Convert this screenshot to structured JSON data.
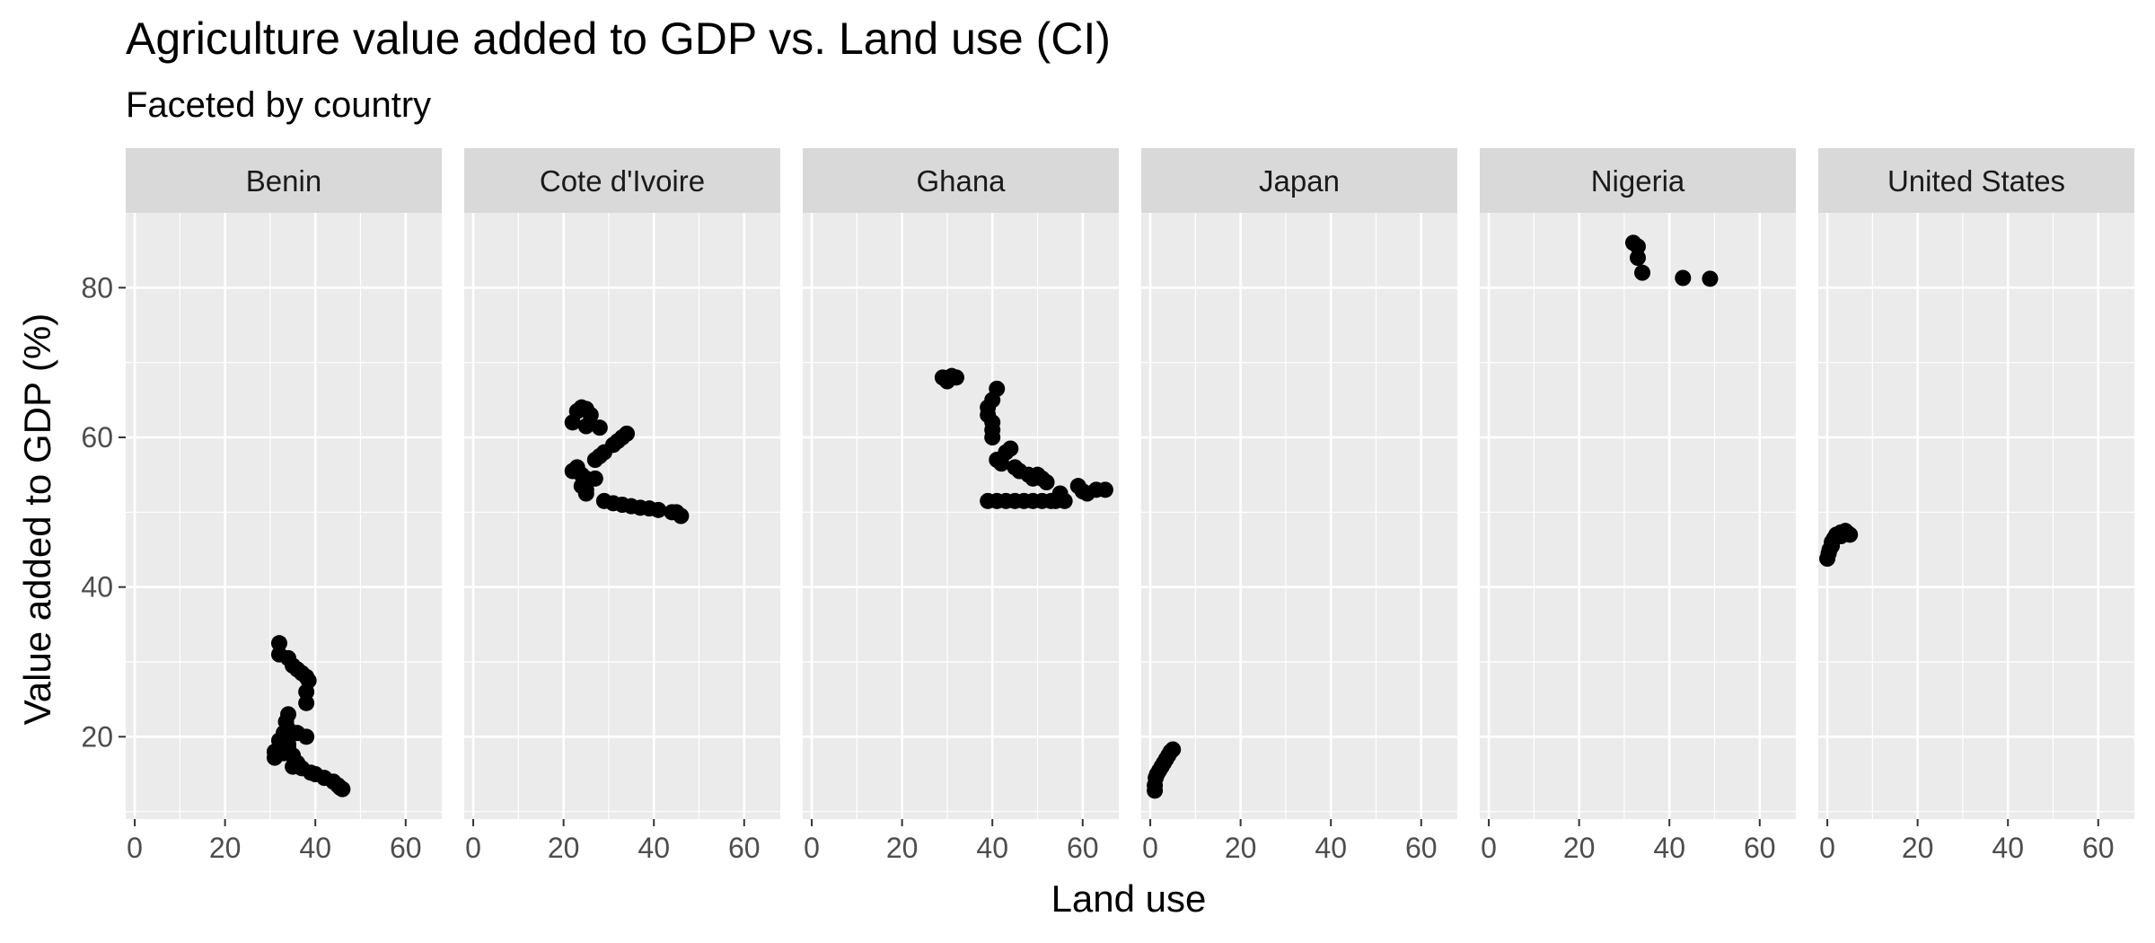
{
  "chart_data": {
    "type": "scatter",
    "title": "Agriculture value added to GDP vs. Land use (CI)",
    "subtitle": "Faceted by country",
    "xlabel": "Land use",
    "ylabel": "Value added to GDP (%)",
    "xlim": [
      -2,
      68
    ],
    "ylim": [
      9,
      90
    ],
    "x_ticks": [
      0,
      20,
      40,
      60
    ],
    "y_ticks": [
      20,
      40,
      60,
      80
    ],
    "grid": true,
    "point_color": "#000000",
    "panel_background": "#ebebeb",
    "strip_background": "#d9d9d9",
    "facets": [
      {
        "label": "Benin",
        "points": [
          [
            32,
            32.5
          ],
          [
            32,
            31
          ],
          [
            34,
            30.5
          ],
          [
            35,
            29.5
          ],
          [
            36,
            29
          ],
          [
            37,
            28.5
          ],
          [
            38,
            28
          ],
          [
            38.5,
            27.5
          ],
          [
            38,
            26
          ],
          [
            38,
            24.5
          ],
          [
            34,
            23
          ],
          [
            33.5,
            22
          ],
          [
            34,
            21
          ],
          [
            33,
            20.5
          ],
          [
            33,
            19.5
          ],
          [
            34,
            19
          ],
          [
            32,
            19.5
          ],
          [
            31,
            18
          ],
          [
            31,
            17.2
          ],
          [
            33,
            17.8
          ],
          [
            34,
            18.5
          ],
          [
            35,
            17.5
          ],
          [
            36,
            16.5
          ],
          [
            35,
            16
          ],
          [
            37,
            15.8
          ],
          [
            39,
            15.2
          ],
          [
            40,
            15
          ],
          [
            42,
            14.5
          ],
          [
            44,
            14
          ],
          [
            45,
            13.5
          ],
          [
            45.5,
            13.2
          ],
          [
            46,
            13
          ],
          [
            36,
            20.5
          ],
          [
            38,
            20
          ]
        ]
      },
      {
        "label": "Cote d'Ivoire",
        "points": [
          [
            22,
            62
          ],
          [
            23,
            63.5
          ],
          [
            24,
            64
          ],
          [
            25,
            63.8
          ],
          [
            26,
            63
          ],
          [
            25,
            61.5
          ],
          [
            28,
            61.3
          ],
          [
            22,
            55.5
          ],
          [
            23,
            56
          ],
          [
            24,
            55
          ],
          [
            25,
            54.5
          ],
          [
            27,
            54.5
          ],
          [
            24,
            53.5
          ],
          [
            25,
            53
          ],
          [
            25,
            52.5
          ],
          [
            27,
            57
          ],
          [
            28,
            57.5
          ],
          [
            29,
            58
          ],
          [
            31,
            59
          ],
          [
            32,
            59.5
          ],
          [
            33,
            60
          ],
          [
            34,
            60.5
          ],
          [
            29,
            51.5
          ],
          [
            31,
            51.2
          ],
          [
            33,
            51
          ],
          [
            35,
            50.8
          ],
          [
            37,
            50.6
          ],
          [
            39,
            50.5
          ],
          [
            41,
            50.3
          ],
          [
            44,
            50
          ],
          [
            45,
            50
          ],
          [
            46,
            49.5
          ]
        ]
      },
      {
        "label": "Ghana",
        "points": [
          [
            29,
            68
          ],
          [
            30,
            67.5
          ],
          [
            31,
            68.2
          ],
          [
            32,
            68
          ],
          [
            41,
            66.5
          ],
          [
            40,
            65
          ],
          [
            39,
            64
          ],
          [
            39,
            63
          ],
          [
            40,
            62
          ],
          [
            40,
            61
          ],
          [
            40,
            60
          ],
          [
            41,
            57
          ],
          [
            42,
            56.5
          ],
          [
            43,
            58
          ],
          [
            44,
            58.5
          ],
          [
            45,
            56
          ],
          [
            46,
            55.5
          ],
          [
            48,
            55
          ],
          [
            49,
            54.5
          ],
          [
            50,
            55
          ],
          [
            51,
            54.5
          ],
          [
            52,
            54
          ],
          [
            39,
            51.5
          ],
          [
            41,
            51.5
          ],
          [
            43,
            51.5
          ],
          [
            45,
            51.5
          ],
          [
            47,
            51.5
          ],
          [
            49,
            51.5
          ],
          [
            51,
            51.5
          ],
          [
            53,
            51.5
          ],
          [
            54,
            51.5
          ],
          [
            55,
            52
          ],
          [
            56,
            51.5
          ],
          [
            55,
            52.5
          ],
          [
            59,
            53.5
          ],
          [
            60,
            52.8
          ],
          [
            61,
            52.5
          ],
          [
            63,
            53
          ],
          [
            65,
            53
          ]
        ]
      },
      {
        "label": "Japan",
        "points": [
          [
            1,
            12.8
          ],
          [
            1,
            13.5
          ],
          [
            1.2,
            14.5
          ],
          [
            1.5,
            15
          ],
          [
            2,
            15.5
          ],
          [
            2.5,
            16
          ],
          [
            3,
            16.5
          ],
          [
            3.5,
            17
          ],
          [
            4,
            17.5
          ],
          [
            4.5,
            18
          ],
          [
            5,
            18.3
          ]
        ]
      },
      {
        "label": "Nigeria",
        "points": [
          [
            32,
            86
          ],
          [
            33,
            85.5
          ],
          [
            33,
            84
          ],
          [
            34,
            82
          ],
          [
            43,
            81.3
          ],
          [
            49,
            81.2
          ]
        ]
      },
      {
        "label": "United States",
        "points": [
          [
            0,
            43.8
          ],
          [
            0.3,
            44.5
          ],
          [
            0.5,
            45
          ],
          [
            1,
            45.5
          ],
          [
            1,
            46
          ],
          [
            1.5,
            46.5
          ],
          [
            2,
            47
          ],
          [
            3,
            47.3
          ],
          [
            4,
            47.5
          ],
          [
            4.5,
            47.2
          ],
          [
            5,
            47
          ],
          [
            3,
            46.8
          ]
        ]
      }
    ]
  }
}
